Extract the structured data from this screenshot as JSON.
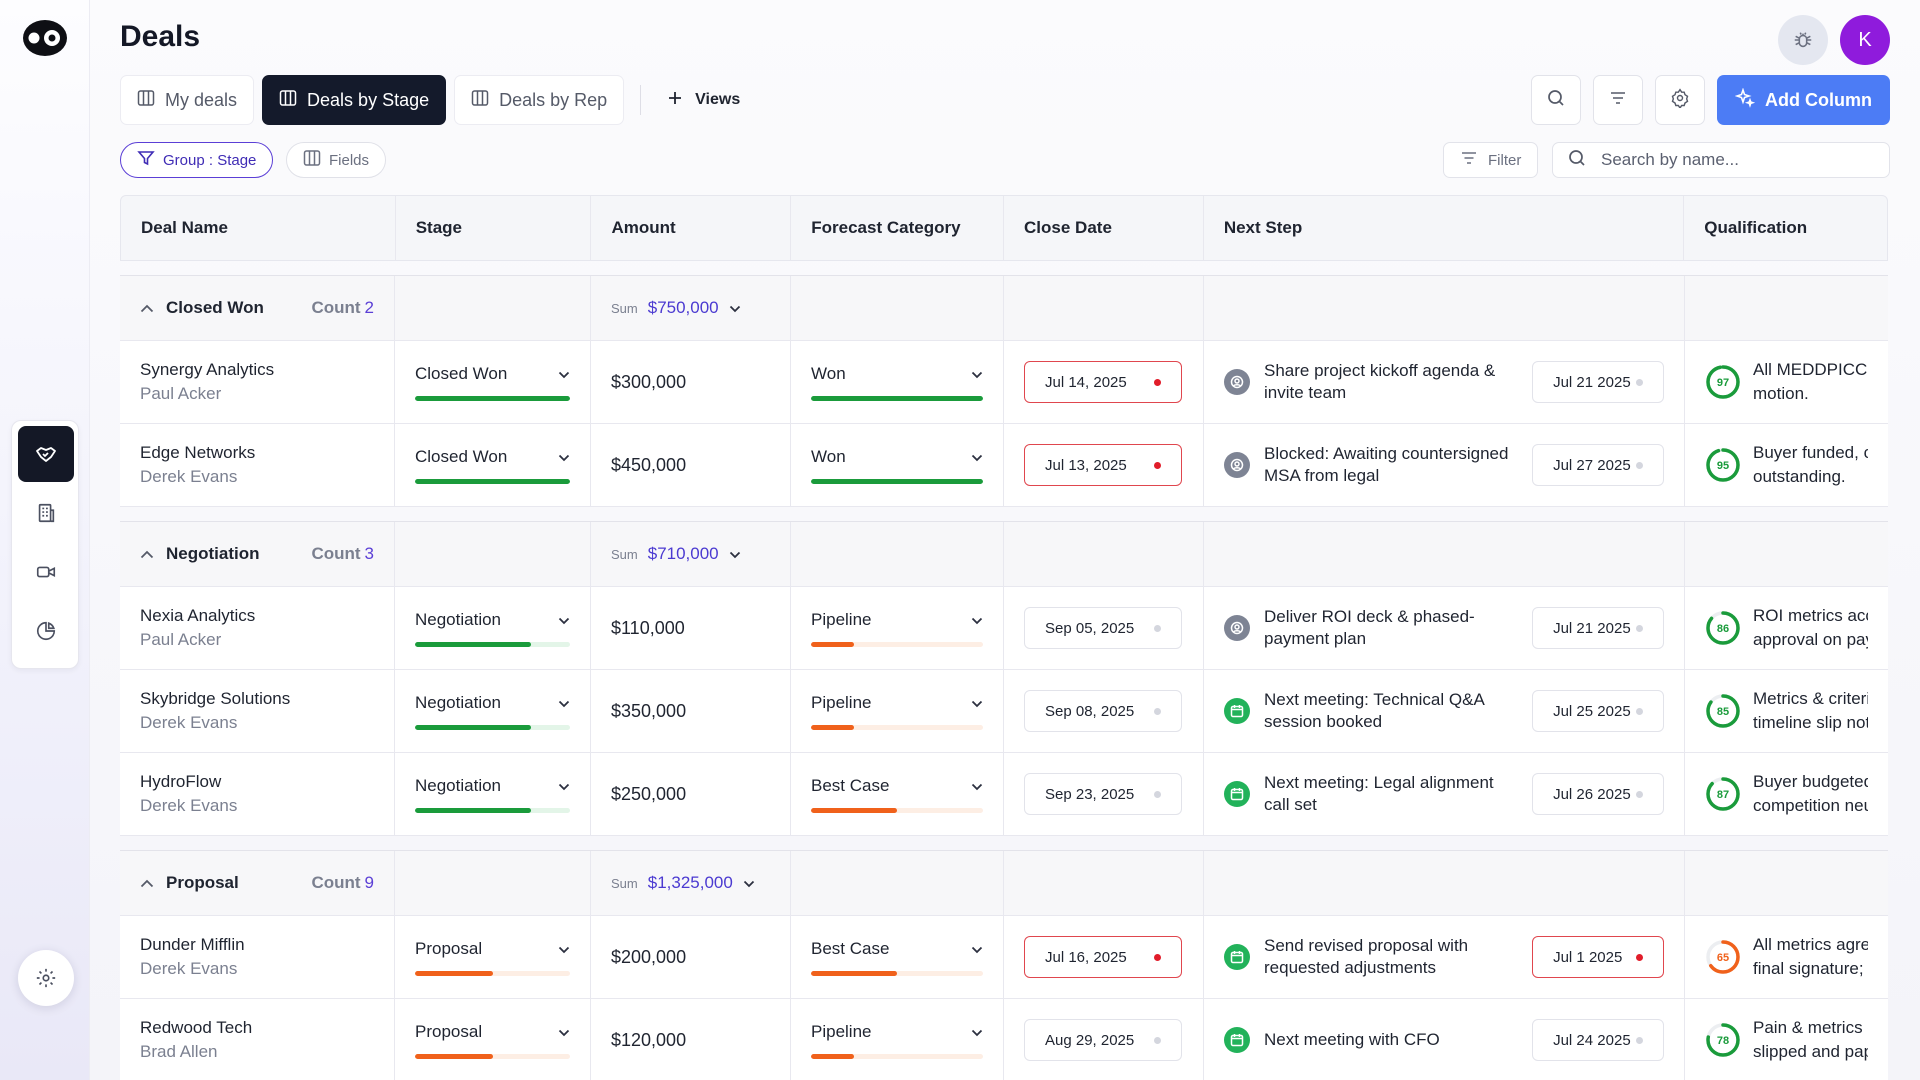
{
  "page": {
    "title": "Deals"
  },
  "header": {
    "avatar_initial": "K"
  },
  "tabs": [
    {
      "label": "My deals",
      "active": false
    },
    {
      "label": "Deals by Stage",
      "active": true
    },
    {
      "label": "Deals by Rep",
      "active": false
    }
  ],
  "views_label": "Views",
  "add_column_label": "Add Column",
  "chips": {
    "group": "Group : Stage",
    "fields": "Fields"
  },
  "filter_label": "Filter",
  "search": {
    "placeholder": "Search by name...",
    "value": ""
  },
  "columns": [
    "Deal Name",
    "Stage",
    "Amount",
    "Forecast Category",
    "Close Date",
    "Next Step",
    "Qualification"
  ],
  "count_label": "Count",
  "sum_label": "Sum",
  "colors": {
    "green": "#1a9b3b",
    "orange": "#f0611b",
    "purple": "#5b3fd6",
    "red": "#e11d2a",
    "accent_blue": "#4c7cf5"
  },
  "groups": [
    {
      "name": "Closed Won",
      "count": "2",
      "sum": "$750,000",
      "rows": [
        {
          "name": "Synergy Analytics",
          "owner": "Paul Acker",
          "stage": "Closed Won",
          "stage_progress": 1.0,
          "stage_color": "green",
          "amount": "$300,000",
          "forecast": "Won",
          "forecast_progress": 1.0,
          "forecast_color": "green",
          "close_date": "Jul 14, 2025",
          "close_overdue": true,
          "next_step": "Share project kickoff agenda & invite team",
          "next_icon": "person-icon",
          "next_date": "Jul 21 2025",
          "next_overdue": false,
          "qual_score": 97,
          "qual_text": [
            "All MEDDPICC fa",
            "motion."
          ]
        },
        {
          "name": "Edge Networks",
          "owner": "Derek Evans",
          "stage": "Closed Won",
          "stage_progress": 1.0,
          "stage_color": "green",
          "amount": "$450,000",
          "forecast": "Won",
          "forecast_progress": 1.0,
          "forecast_color": "green",
          "close_date": "Jul 13, 2025",
          "close_overdue": true,
          "next_step": "Blocked: Awaiting countersigned MSA from legal",
          "next_icon": "person-icon",
          "next_date": "Jul 27 2025",
          "next_overdue": false,
          "qual_score": 95,
          "qual_text": [
            "Buyer funded, co",
            "outstanding."
          ]
        }
      ]
    },
    {
      "name": "Negotiation",
      "count": "3",
      "sum": "$710,000",
      "rows": [
        {
          "name": "Nexia Analytics",
          "owner": "Paul Acker",
          "stage": "Negotiation",
          "stage_progress": 0.75,
          "stage_color": "green",
          "amount": "$110,000",
          "forecast": "Pipeline",
          "forecast_progress": 0.25,
          "forecast_color": "orange",
          "close_date": "Sep 05, 2025",
          "close_overdue": false,
          "next_step": "Deliver ROI deck & phased-payment plan",
          "next_icon": "person-icon",
          "next_date": "Jul 21 2025",
          "next_overdue": false,
          "qual_score": 86,
          "qual_text": [
            "ROI metrics acce",
            "approval on payr"
          ]
        },
        {
          "name": "Skybridge Solutions",
          "owner": "Derek Evans",
          "stage": "Negotiation",
          "stage_progress": 0.75,
          "stage_color": "green",
          "amount": "$350,000",
          "forecast": "Pipeline",
          "forecast_progress": 0.25,
          "forecast_color": "orange",
          "close_date": "Sep 08, 2025",
          "close_overdue": false,
          "next_step": "Next meeting: Technical Q&A session booked",
          "next_icon": "calendar-icon",
          "next_date": "Jul 25 2025",
          "next_overdue": false,
          "qual_score": 85,
          "qual_text": [
            "Metrics & criteria",
            "timeline slip note"
          ]
        },
        {
          "name": "HydroFlow",
          "owner": "Derek Evans",
          "stage": "Negotiation",
          "stage_progress": 0.75,
          "stage_color": "green",
          "amount": "$250,000",
          "forecast": "Best Case",
          "forecast_progress": 0.5,
          "forecast_color": "orange",
          "close_date": "Sep 23, 2025",
          "close_overdue": false,
          "next_step": "Next meeting: Legal alignment call set",
          "next_icon": "calendar-icon",
          "next_date": "Jul 26 2025",
          "next_overdue": false,
          "qual_score": 87,
          "qual_text": [
            "Buyer budgeted,",
            "competition neut"
          ]
        }
      ]
    },
    {
      "name": "Proposal",
      "count": "9",
      "sum": "$1,325,000",
      "rows": [
        {
          "name": "Dunder Mifflin",
          "owner": "Derek Evans",
          "stage": "Proposal",
          "stage_progress": 0.5,
          "stage_color": "orange",
          "amount": "$200,000",
          "forecast": "Best Case",
          "forecast_progress": 0.5,
          "forecast_color": "orange",
          "close_date": "Jul 16, 2025",
          "close_overdue": true,
          "next_step": "Send revised proposal with requested adjustments",
          "next_icon": "calendar-icon",
          "next_date": "Jul 1 2025",
          "next_overdue": true,
          "qual_score": 65,
          "qual_text": [
            "All metrics agree",
            "final signature; cl"
          ]
        },
        {
          "name": "Redwood Tech",
          "owner": "Brad Allen",
          "stage": "Proposal",
          "stage_progress": 0.5,
          "stage_color": "orange",
          "amount": "$120,000",
          "forecast": "Pipeline",
          "forecast_progress": 0.25,
          "forecast_color": "orange",
          "close_date": "Aug 29, 2025",
          "close_overdue": false,
          "next_step": "Next meeting with CFO",
          "next_icon": "calendar-icon",
          "next_date": "Jul 24 2025",
          "next_overdue": false,
          "qual_score": 78,
          "qual_text": [
            "Pain & metrics cle",
            "slipped and pape"
          ]
        }
      ]
    }
  ]
}
